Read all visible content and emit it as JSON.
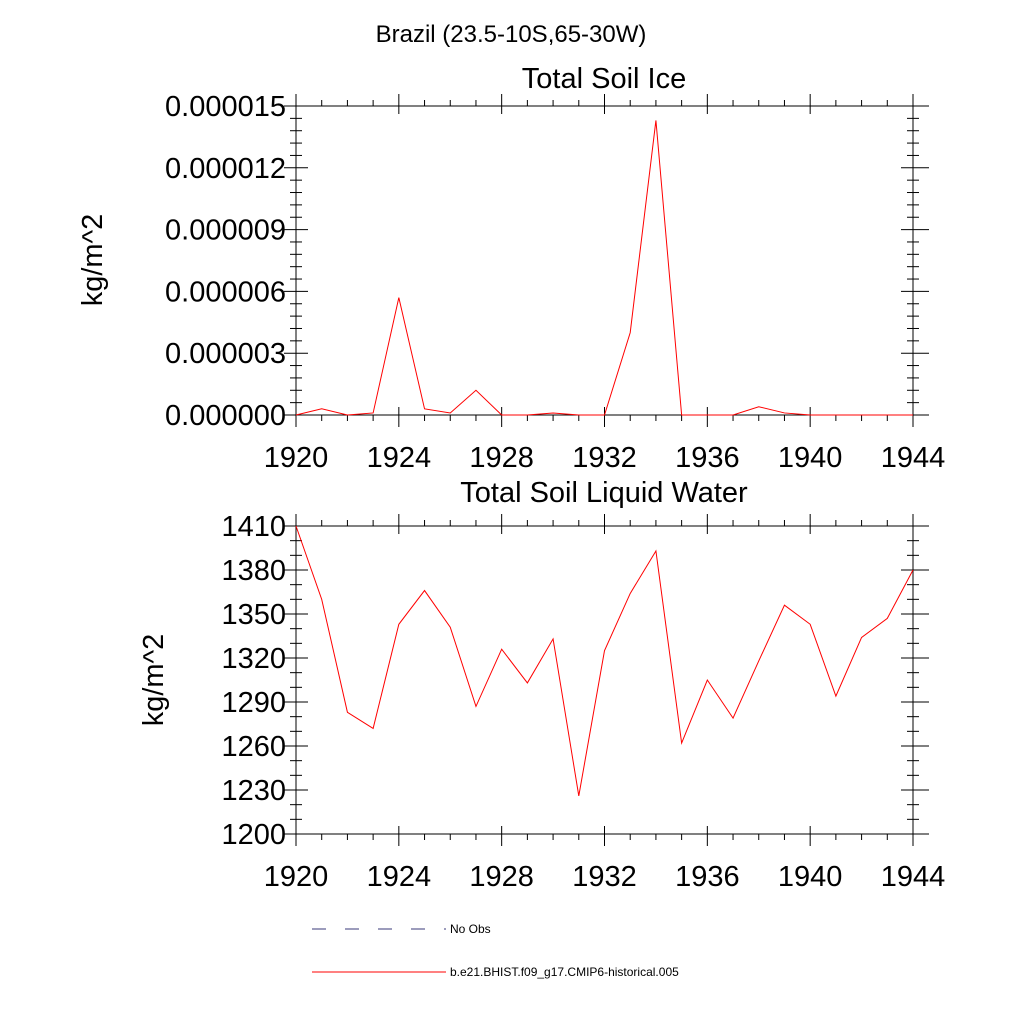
{
  "title": "Brazil (23.5-10S,65-30W)",
  "chart_data": [
    {
      "type": "line",
      "title": "Total Soil Ice",
      "xlabel": "",
      "ylabel": "kg/m^2",
      "xlim": [
        1920,
        1944
      ],
      "ylim": [
        0,
        1.5e-05
      ],
      "xticks": [
        1920,
        1924,
        1928,
        1932,
        1936,
        1940,
        1944
      ],
      "xtick_labels": [
        "1920",
        "1924",
        "1928",
        "1932",
        "1936",
        "1940",
        "1944"
      ],
      "yticks": [
        0,
        3e-06,
        6e-06,
        9e-06,
        1.2e-05,
        1.5e-05
      ],
      "ytick_labels": [
        "0.000000",
        "0.000003",
        "0.000006",
        "0.000009",
        "0.000012",
        "0.000015"
      ],
      "grid": false,
      "series": [
        {
          "name": "b.e21.BHIST.f09_g17.CMIP6-historical.005",
          "color": "#ff0000",
          "x": [
            1920,
            1921,
            1922,
            1923,
            1924,
            1925,
            1926,
            1927,
            1928,
            1929,
            1930,
            1931,
            1932,
            1933,
            1934,
            1935,
            1936,
            1937,
            1938,
            1939,
            1940,
            1941,
            1942,
            1943,
            1944
          ],
          "values": [
            0.0,
            3e-07,
            0.0,
            1e-07,
            5.7e-06,
            3e-07,
            1e-07,
            1.2e-06,
            0.0,
            0.0,
            1e-07,
            0.0,
            0.0,
            4e-06,
            1.43e-05,
            0.0,
            0.0,
            0.0,
            4e-07,
            1e-07,
            0.0,
            0.0,
            0.0,
            0.0,
            0.0
          ]
        }
      ]
    },
    {
      "type": "line",
      "title": "Total Soil Liquid Water",
      "xlabel": "",
      "ylabel": "kg/m^2",
      "xlim": [
        1920,
        1944
      ],
      "ylim": [
        1200,
        1410
      ],
      "xticks": [
        1920,
        1924,
        1928,
        1932,
        1936,
        1940,
        1944
      ],
      "xtick_labels": [
        "1920",
        "1924",
        "1928",
        "1932",
        "1936",
        "1940",
        "1944"
      ],
      "yticks": [
        1200,
        1230,
        1260,
        1290,
        1320,
        1350,
        1380,
        1410
      ],
      "ytick_labels": [
        "1200",
        "1230",
        "1260",
        "1290",
        "1320",
        "1350",
        "1380",
        "1410"
      ],
      "grid": false,
      "series": [
        {
          "name": "b.e21.BHIST.f09_g17.CMIP6-historical.005",
          "color": "#ff0000",
          "x": [
            1920,
            1921,
            1922,
            1923,
            1924,
            1925,
            1926,
            1927,
            1928,
            1929,
            1930,
            1931,
            1932,
            1933,
            1934,
            1935,
            1936,
            1937,
            1938,
            1939,
            1940,
            1941,
            1942,
            1943,
            1944
          ],
          "values": [
            1410,
            1360,
            1283,
            1272,
            1343,
            1366,
            1341,
            1287,
            1326,
            1303,
            1333,
            1226,
            1325,
            1364,
            1393,
            1262,
            1305,
            1279,
            1318,
            1356,
            1343,
            1294,
            1334,
            1347,
            1380
          ]
        }
      ]
    }
  ],
  "legend": {
    "placement": "bottom-left",
    "entries": [
      {
        "label": "No Obs",
        "color": "#3a3a7a",
        "style": "dashed"
      },
      {
        "label": "b.e21.BHIST.f09_g17.CMIP6-historical.005",
        "color": "#ff0000",
        "style": "solid"
      }
    ]
  }
}
